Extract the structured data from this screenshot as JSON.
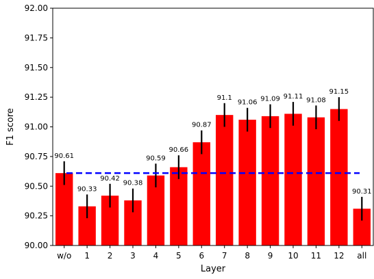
{
  "chart_data": {
    "type": "bar",
    "title": "",
    "xlabel": "Layer",
    "ylabel": "F1 score",
    "ylim": [
      90.0,
      92.0
    ],
    "yticks": [
      "90.00",
      "90.25",
      "90.50",
      "90.75",
      "91.00",
      "91.25",
      "91.50",
      "91.75",
      "92.00"
    ],
    "categories": [
      "w/o",
      "1",
      "2",
      "3",
      "4",
      "5",
      "6",
      "7",
      "8",
      "9",
      "10",
      "11",
      "12",
      "all"
    ],
    "values": [
      90.61,
      90.33,
      90.42,
      90.38,
      90.59,
      90.66,
      90.87,
      91.1,
      91.06,
      91.09,
      91.11,
      91.08,
      91.15,
      90.31
    ],
    "value_labels": [
      "90.61",
      "90.33",
      "90.42",
      "90.38",
      "90.59",
      "90.66",
      "90.87",
      "91.1",
      "91.06",
      "91.09",
      "91.11",
      "91.08",
      "91.15",
      "90.31"
    ],
    "error": [
      0.1,
      0.1,
      0.1,
      0.1,
      0.1,
      0.1,
      0.1,
      0.1,
      0.1,
      0.1,
      0.1,
      0.1,
      0.1,
      0.1
    ],
    "reference_line": {
      "y": 90.61,
      "style": "dashed",
      "color": "#0000ff"
    },
    "bar_color": "#ff0000",
    "error_color": "#000000",
    "grid": false,
    "legend": "none"
  }
}
